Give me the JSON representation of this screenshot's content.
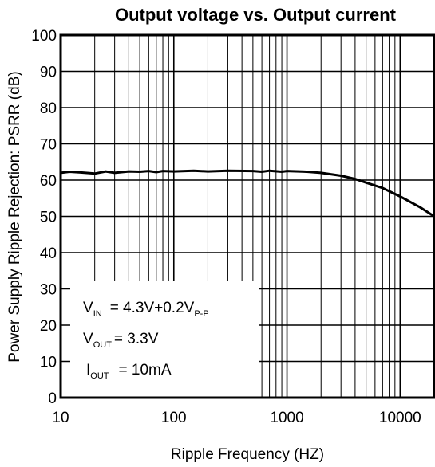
{
  "chart_data": {
    "type": "line",
    "title": "Output voltage vs. Output current",
    "xlabel": "Ripple Frequency (HZ)",
    "ylabel": "Power Supply Ripple Rejection: PSRR (dB)",
    "x_scale": "log",
    "xlim": [
      10,
      20000
    ],
    "ylim": [
      0,
      100
    ],
    "x_ticks": [
      "10",
      "100",
      "1000",
      "10000"
    ],
    "y_ticks": [
      "0",
      "10",
      "20",
      "30",
      "40",
      "50",
      "60",
      "70",
      "80",
      "90",
      "100"
    ],
    "grid": true,
    "series": [
      {
        "x": [
          10,
          12,
          15,
          20,
          25,
          30,
          40,
          50,
          60,
          70,
          80,
          100,
          150,
          200,
          300,
          500,
          600,
          700,
          900,
          1000,
          1500,
          2000,
          3000,
          4000,
          5000,
          7000,
          10000,
          15000,
          20000
        ],
        "y": [
          62.0,
          62.3,
          62.1,
          61.8,
          62.4,
          62.0,
          62.4,
          62.3,
          62.5,
          62.2,
          62.5,
          62.4,
          62.6,
          62.4,
          62.6,
          62.5,
          62.3,
          62.6,
          62.3,
          62.5,
          62.3,
          62.0,
          61.2,
          60.3,
          59.3,
          57.8,
          55.5,
          52.5,
          50.0
        ]
      }
    ],
    "annotations": {
      "vin_main": "V",
      "vin_sub": "IN",
      "vin_value": "= 4.3V+0.2V",
      "vin_value_sub": "P-P",
      "vout_main": "V",
      "vout_sub": "OUT",
      "vout_value": "= 3.3V",
      "iout_main": "I",
      "iout_sub": "OUT",
      "iout_value": "= 10mA"
    }
  }
}
